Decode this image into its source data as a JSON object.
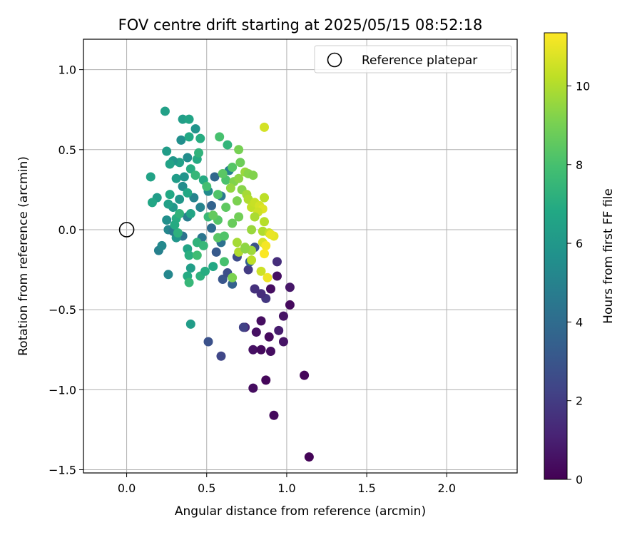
{
  "chart_data": {
    "type": "scatter",
    "title": "FOV centre drift starting at 2025/05/15 08:52:18",
    "xlabel": "Angular distance from reference (arcmin)",
    "ylabel": "Rotation from reference (arcmin)",
    "xlim": [
      -0.27,
      2.44
    ],
    "ylim": [
      -1.52,
      1.19
    ],
    "x_ticks": [
      0.0,
      0.5,
      1.0,
      1.5,
      2.0
    ],
    "x_tick_labels": [
      "0.0",
      "0.5",
      "1.0",
      "1.5",
      "2.0"
    ],
    "y_ticks": [
      -1.5,
      -1.0,
      -0.5,
      0.0,
      0.5,
      1.0
    ],
    "y_tick_labels": [
      "−1.5",
      "−1.0",
      "−0.5",
      "0.0",
      "0.5",
      "1.0"
    ],
    "grid": true,
    "legend": {
      "placement": "top-right",
      "entries": [
        "Reference platepar"
      ]
    },
    "reference_point": {
      "x": 0.0,
      "y": 0.0,
      "name": "Reference platepar"
    },
    "colorbar": {
      "label": "Hours from first FF file",
      "range": [
        0,
        11.35
      ],
      "ticks": [
        0,
        2,
        4,
        6,
        8,
        10
      ],
      "tick_labels": [
        "0",
        "2",
        "4",
        "6",
        "8",
        "10"
      ],
      "colormap": "viridis"
    },
    "points": [
      {
        "x": 1.14,
        "y": -1.42,
        "t": 0.1
      },
      {
        "x": 0.92,
        "y": -1.16,
        "t": 0.3
      },
      {
        "x": 1.11,
        "y": -0.91,
        "t": 0.2
      },
      {
        "x": 0.87,
        "y": -0.94,
        "t": 0.2
      },
      {
        "x": 0.79,
        "y": -0.99,
        "t": 0.4
      },
      {
        "x": 0.79,
        "y": -0.75,
        "t": 0.5
      },
      {
        "x": 0.84,
        "y": -0.75,
        "t": 0.3
      },
      {
        "x": 0.9,
        "y": -0.76,
        "t": 0.4
      },
      {
        "x": 0.98,
        "y": -0.7,
        "t": 0.6
      },
      {
        "x": 0.95,
        "y": -0.63,
        "t": 0.9
      },
      {
        "x": 0.89,
        "y": -0.67,
        "t": 0.3
      },
      {
        "x": 0.81,
        "y": -0.64,
        "t": 0.5
      },
      {
        "x": 0.74,
        "y": -0.61,
        "t": 1.2
      },
      {
        "x": 0.84,
        "y": -0.57,
        "t": 0.4
      },
      {
        "x": 0.98,
        "y": -0.54,
        "t": 0.6
      },
      {
        "x": 1.02,
        "y": -0.47,
        "t": 0.3
      },
      {
        "x": 1.02,
        "y": -0.36,
        "t": 0.7
      },
      {
        "x": 0.87,
        "y": -0.43,
        "t": 1.8
      },
      {
        "x": 0.84,
        "y": -0.4,
        "t": 1.5
      },
      {
        "x": 0.8,
        "y": -0.37,
        "t": 1.6
      },
      {
        "x": 0.9,
        "y": -0.37,
        "t": 0.4
      },
      {
        "x": 0.94,
        "y": -0.29,
        "t": 0.5
      },
      {
        "x": 0.94,
        "y": -0.2,
        "t": 1.5
      },
      {
        "x": 0.76,
        "y": -0.25,
        "t": 2.0
      },
      {
        "x": 0.51,
        "y": -0.7,
        "t": 2.8
      },
      {
        "x": 0.59,
        "y": -0.79,
        "t": 2.4
      },
      {
        "x": 0.73,
        "y": -0.61,
        "t": 2.2
      },
      {
        "x": 0.6,
        "y": -0.31,
        "t": 3.0
      },
      {
        "x": 0.69,
        "y": -0.17,
        "t": 2.6
      },
      {
        "x": 0.74,
        "y": -0.12,
        "t": 3.1
      },
      {
        "x": 0.77,
        "y": -0.2,
        "t": 3.4
      },
      {
        "x": 0.8,
        "y": -0.11,
        "t": 2.8
      },
      {
        "x": 0.66,
        "y": -0.34,
        "t": 3.5
      },
      {
        "x": 0.63,
        "y": -0.27,
        "t": 2.7
      },
      {
        "x": 0.56,
        "y": -0.14,
        "t": 3.2
      },
      {
        "x": 0.53,
        "y": 0.15,
        "t": 3.6
      },
      {
        "x": 0.53,
        "y": 0.01,
        "t": 4.0
      },
      {
        "x": 0.47,
        "y": -0.05,
        "t": 4.4
      },
      {
        "x": 0.59,
        "y": -0.08,
        "t": 4.2
      },
      {
        "x": 0.46,
        "y": 0.14,
        "t": 5.1
      },
      {
        "x": 0.55,
        "y": 0.33,
        "t": 3.8
      },
      {
        "x": 0.59,
        "y": 0.21,
        "t": 4.6
      },
      {
        "x": 0.64,
        "y": 0.37,
        "t": 5.0
      },
      {
        "x": 0.51,
        "y": 0.24,
        "t": 5.4
      },
      {
        "x": 0.42,
        "y": 0.2,
        "t": 5.1
      },
      {
        "x": 0.38,
        "y": 0.08,
        "t": 4.8
      },
      {
        "x": 0.35,
        "y": -0.04,
        "t": 4.3
      },
      {
        "x": 0.31,
        "y": -0.05,
        "t": 5.9
      },
      {
        "x": 0.26,
        "y": -0.28,
        "t": 5.2
      },
      {
        "x": 0.2,
        "y": -0.13,
        "t": 4.9
      },
      {
        "x": 0.22,
        "y": -0.1,
        "t": 5.3
      },
      {
        "x": 0.25,
        "y": 0.06,
        "t": 5.6
      },
      {
        "x": 0.26,
        "y": 0.0,
        "t": 5.2
      },
      {
        "x": 0.29,
        "y": -0.01,
        "t": 4.7
      },
      {
        "x": 0.29,
        "y": 0.14,
        "t": 6.0
      },
      {
        "x": 0.33,
        "y": 0.19,
        "t": 5.9
      },
      {
        "x": 0.35,
        "y": 0.27,
        "t": 5.5
      },
      {
        "x": 0.31,
        "y": 0.32,
        "t": 6.2
      },
      {
        "x": 0.36,
        "y": 0.33,
        "t": 5.8
      },
      {
        "x": 0.38,
        "y": 0.45,
        "t": 5.5
      },
      {
        "x": 0.33,
        "y": 0.42,
        "t": 6.4
      },
      {
        "x": 0.29,
        "y": 0.43,
        "t": 5.9
      },
      {
        "x": 0.27,
        "y": 0.41,
        "t": 6.5
      },
      {
        "x": 0.25,
        "y": 0.49,
        "t": 6.2
      },
      {
        "x": 0.34,
        "y": 0.56,
        "t": 5.6
      },
      {
        "x": 0.35,
        "y": 0.69,
        "t": 6.3
      },
      {
        "x": 0.39,
        "y": 0.69,
        "t": 6.6
      },
      {
        "x": 0.43,
        "y": 0.63,
        "t": 5.8
      },
      {
        "x": 0.24,
        "y": 0.74,
        "t": 6.4
      },
      {
        "x": 0.39,
        "y": 0.58,
        "t": 6.8
      },
      {
        "x": 0.46,
        "y": 0.57,
        "t": 7.0
      },
      {
        "x": 0.44,
        "y": 0.44,
        "t": 6.9
      },
      {
        "x": 0.45,
        "y": 0.48,
        "t": 7.3
      },
      {
        "x": 0.4,
        "y": 0.38,
        "t": 7.0
      },
      {
        "x": 0.43,
        "y": 0.34,
        "t": 7.5
      },
      {
        "x": 0.48,
        "y": 0.31,
        "t": 6.9
      },
      {
        "x": 0.38,
        "y": 0.23,
        "t": 6.8
      },
      {
        "x": 0.4,
        "y": 0.1,
        "t": 6.6
      },
      {
        "x": 0.26,
        "y": 0.16,
        "t": 6.4
      },
      {
        "x": 0.19,
        "y": 0.2,
        "t": 6.2
      },
      {
        "x": 0.16,
        "y": 0.17,
        "t": 6.7
      },
      {
        "x": 0.15,
        "y": 0.33,
        "t": 6.5
      },
      {
        "x": 0.27,
        "y": 0.22,
        "t": 6.8
      },
      {
        "x": 0.31,
        "y": 0.07,
        "t": 7.0
      },
      {
        "x": 0.32,
        "y": -0.02,
        "t": 7.2
      },
      {
        "x": 0.33,
        "y": 0.1,
        "t": 7.3
      },
      {
        "x": 0.3,
        "y": 0.03,
        "t": 6.9
      },
      {
        "x": 0.38,
        "y": -0.12,
        "t": 6.6
      },
      {
        "x": 0.39,
        "y": -0.16,
        "t": 7.1
      },
      {
        "x": 0.4,
        "y": -0.24,
        "t": 6.3
      },
      {
        "x": 0.38,
        "y": -0.29,
        "t": 6.9
      },
      {
        "x": 0.39,
        "y": -0.33,
        "t": 7.5
      },
      {
        "x": 0.46,
        "y": -0.29,
        "t": 7.2
      },
      {
        "x": 0.49,
        "y": -0.26,
        "t": 7.0
      },
      {
        "x": 0.54,
        "y": -0.23,
        "t": 6.8
      },
      {
        "x": 0.44,
        "y": -0.08,
        "t": 7.3
      },
      {
        "x": 0.44,
        "y": -0.16,
        "t": 7.8
      },
      {
        "x": 0.48,
        "y": -0.1,
        "t": 7.5
      },
      {
        "x": 0.4,
        "y": -0.59,
        "t": 6.2
      },
      {
        "x": 0.51,
        "y": 0.08,
        "t": 7.6
      },
      {
        "x": 0.58,
        "y": 0.58,
        "t": 8.0
      },
      {
        "x": 0.5,
        "y": 0.27,
        "t": 7.9
      },
      {
        "x": 0.62,
        "y": 0.31,
        "t": 8.1
      },
      {
        "x": 0.66,
        "y": 0.39,
        "t": 8.3
      },
      {
        "x": 0.63,
        "y": 0.53,
        "t": 7.4
      },
      {
        "x": 0.6,
        "y": 0.35,
        "t": 8.4
      },
      {
        "x": 0.57,
        "y": 0.22,
        "t": 8.2
      },
      {
        "x": 0.62,
        "y": 0.14,
        "t": 8.5
      },
      {
        "x": 0.57,
        "y": 0.06,
        "t": 8.3
      },
      {
        "x": 0.54,
        "y": 0.09,
        "t": 8.6
      },
      {
        "x": 0.57,
        "y": -0.05,
        "t": 8.4
      },
      {
        "x": 0.61,
        "y": -0.04,
        "t": 8.2
      },
      {
        "x": 0.61,
        "y": -0.2,
        "t": 8.0
      },
      {
        "x": 0.66,
        "y": 0.04,
        "t": 8.7
      },
      {
        "x": 0.7,
        "y": 0.08,
        "t": 8.9
      },
      {
        "x": 0.71,
        "y": 0.42,
        "t": 8.8
      },
      {
        "x": 0.7,
        "y": 0.5,
        "t": 9.0
      },
      {
        "x": 0.67,
        "y": 0.3,
        "t": 9.2
      },
      {
        "x": 0.69,
        "y": 0.18,
        "t": 9.1
      },
      {
        "x": 0.72,
        "y": 0.25,
        "t": 9.3
      },
      {
        "x": 0.65,
        "y": 0.26,
        "t": 9.5
      },
      {
        "x": 0.7,
        "y": 0.32,
        "t": 9.4
      },
      {
        "x": 0.74,
        "y": 0.36,
        "t": 9.6
      },
      {
        "x": 0.76,
        "y": 0.35,
        "t": 9.3
      },
      {
        "x": 0.79,
        "y": 0.34,
        "t": 9.2
      },
      {
        "x": 0.75,
        "y": 0.22,
        "t": 9.8
      },
      {
        "x": 0.76,
        "y": 0.19,
        "t": 10.0
      },
      {
        "x": 0.78,
        "y": 0.14,
        "t": 10.3
      },
      {
        "x": 0.8,
        "y": 0.17,
        "t": 10.4
      },
      {
        "x": 0.83,
        "y": 0.15,
        "t": 10.6
      },
      {
        "x": 0.85,
        "y": 0.13,
        "t": 10.8
      },
      {
        "x": 0.82,
        "y": 0.11,
        "t": 10.5
      },
      {
        "x": 0.86,
        "y": 0.2,
        "t": 10.2
      },
      {
        "x": 0.86,
        "y": 0.64,
        "t": 10.6
      },
      {
        "x": 0.8,
        "y": 0.08,
        "t": 9.9
      },
      {
        "x": 0.86,
        "y": 0.05,
        "t": 10.1
      },
      {
        "x": 0.85,
        "y": -0.01,
        "t": 10.0
      },
      {
        "x": 0.89,
        "y": -0.02,
        "t": 10.4
      },
      {
        "x": 0.92,
        "y": -0.04,
        "t": 10.9
      },
      {
        "x": 0.9,
        "y": -0.03,
        "t": 11.0
      },
      {
        "x": 0.85,
        "y": -0.08,
        "t": 10.7
      },
      {
        "x": 0.87,
        "y": -0.1,
        "t": 11.2
      },
      {
        "x": 0.86,
        "y": -0.15,
        "t": 11.3
      },
      {
        "x": 0.78,
        "y": -0.13,
        "t": 9.7
      },
      {
        "x": 0.74,
        "y": -0.11,
        "t": 9.5
      },
      {
        "x": 0.7,
        "y": -0.14,
        "t": 10.0
      },
      {
        "x": 0.69,
        "y": -0.08,
        "t": 9.8
      },
      {
        "x": 0.78,
        "y": -0.19,
        "t": 10.2
      },
      {
        "x": 0.84,
        "y": -0.26,
        "t": 10.5
      },
      {
        "x": 0.88,
        "y": -0.3,
        "t": 11.1
      },
      {
        "x": 0.78,
        "y": 0.0,
        "t": 9.6
      },
      {
        "x": 0.74,
        "y": -0.12,
        "t": 9.4
      },
      {
        "x": 0.66,
        "y": -0.3,
        "t": 9.1
      }
    ]
  }
}
